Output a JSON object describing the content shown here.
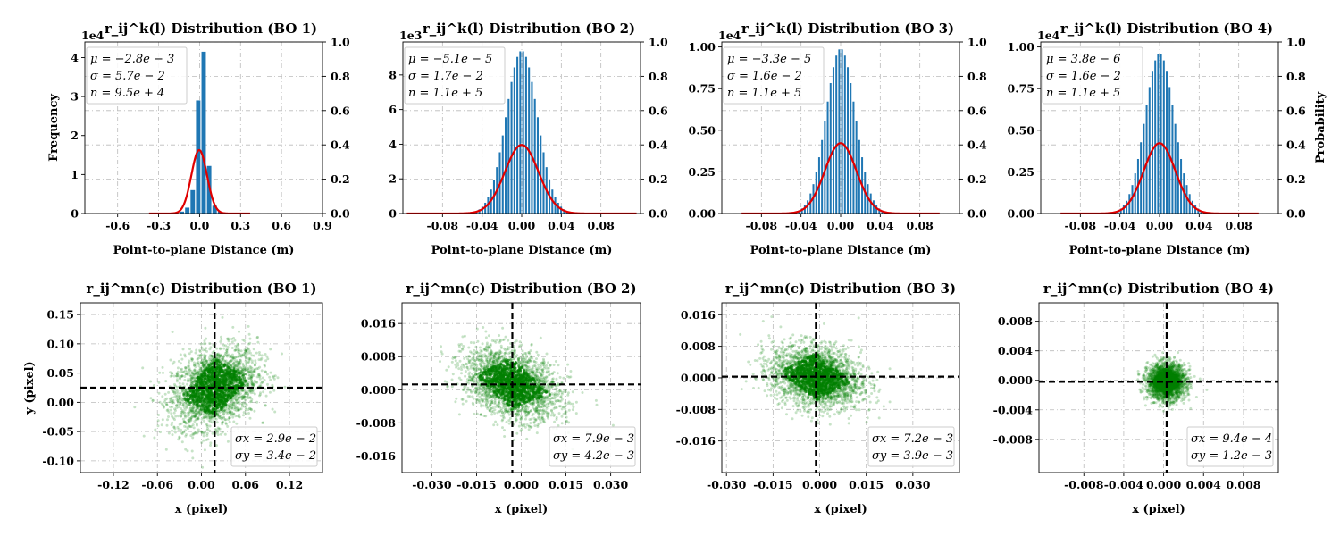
{
  "chart_data": [
    {
      "type": "bar",
      "title": "r_ij^k(l) Distribution (BO 1)",
      "xlabel": "Point-to-plane Distance (m)",
      "ylabel": "Frequency",
      "ylabel_right": "",
      "multiplier": "1e4",
      "xlim": [
        -0.84,
        0.9
      ],
      "ylim": [
        0,
        4.4
      ],
      "xticks": [
        -0.6,
        -0.3,
        0.0,
        0.3,
        0.6,
        0.9
      ],
      "xtick_labels": [
        "-0.6",
        "-0.3",
        "0.0",
        "0.3",
        "0.6",
        "0.9"
      ],
      "yticks": [
        0,
        1,
        2,
        3,
        4
      ],
      "ytick_labels": [
        "0",
        "1",
        "2",
        "3",
        "4"
      ],
      "y2lim": [
        0,
        1.0
      ],
      "y2ticks": [
        0.0,
        0.2,
        0.4,
        0.6,
        0.8,
        1.0
      ],
      "y2tick_labels": [
        "0.0",
        "0.2",
        "0.4",
        "0.6",
        "0.8",
        "1.0"
      ],
      "grid": true,
      "bar_color": "#1f77b4",
      "fit_color": "#e00000",
      "bins": [
        {
          "x": -0.13,
          "w": 0.04,
          "v": 0.05
        },
        {
          "x": -0.09,
          "w": 0.04,
          "v": 0.15
        },
        {
          "x": -0.05,
          "w": 0.04,
          "v": 0.6
        },
        {
          "x": -0.01,
          "w": 0.04,
          "v": 2.9
        },
        {
          "x": 0.03,
          "w": 0.04,
          "v": 4.15
        },
        {
          "x": 0.07,
          "w": 0.04,
          "v": 1.22
        },
        {
          "x": 0.11,
          "w": 0.04,
          "v": 0.2
        },
        {
          "x": 0.15,
          "w": 0.04,
          "v": 0.05
        }
      ],
      "fit": {
        "mu": -0.0028,
        "sigma": 0.057,
        "peak": 0.37,
        "xmin": -0.37,
        "xmax": 0.37
      },
      "stats": [
        "μ = −2.8e − 3",
        "σ = 5.7e − 2",
        "n = 9.5e + 4"
      ]
    },
    {
      "type": "bar",
      "title": "r_ij^k(l) Distribution (BO 2)",
      "xlabel": "Point-to-plane Distance (m)",
      "ylabel": "",
      "ylabel_right": "",
      "multiplier": "1e3",
      "xlim": [
        -0.12,
        0.12
      ],
      "ylim": [
        0,
        9.9
      ],
      "xticks": [
        -0.08,
        -0.04,
        0.0,
        0.04,
        0.08
      ],
      "xtick_labels": [
        "-0.08",
        "-0.04",
        "0.00",
        "0.04",
        "0.08"
      ],
      "yticks": [
        0,
        2,
        4,
        6,
        8
      ],
      "ytick_labels": [
        "0",
        "2",
        "4",
        "6",
        "8"
      ],
      "y2lim": [
        0,
        1.0
      ],
      "y2ticks": [
        0.0,
        0.2,
        0.4,
        0.6,
        0.8,
        1.0
      ],
      "y2tick_labels": [
        "0.0",
        "0.2",
        "0.4",
        "0.6",
        "0.8",
        "1.0"
      ],
      "grid": true,
      "bar_color": "#1f77b4",
      "fit_color": "#e00000",
      "gauss_bars": {
        "center": 0.0,
        "sigma": 0.0158,
        "peak": 9.4,
        "xmin": -0.056,
        "xmax": 0.056,
        "n": 38
      },
      "fit": {
        "mu": 0.0,
        "sigma": 0.017,
        "peak": 0.4,
        "xmin": -0.116,
        "xmax": 0.116
      },
      "stats": [
        "μ = −5.1e − 5",
        "σ = 1.7e − 2",
        "n = 1.1e + 5"
      ]
    },
    {
      "type": "bar",
      "title": "r_ij^k(l) Distribution (BO 3)",
      "xlabel": "Point-to-plane Distance (m)",
      "ylabel": "",
      "ylabel_right": "",
      "multiplier": "1e4",
      "xlim": [
        -0.12,
        0.12
      ],
      "ylim": [
        0,
        1.03
      ],
      "xticks": [
        -0.08,
        -0.04,
        0.0,
        0.04,
        0.08
      ],
      "xtick_labels": [
        "-0.08",
        "-0.04",
        "0.00",
        "0.04",
        "0.08"
      ],
      "yticks": [
        0,
        0.25,
        0.5,
        0.75,
        1.0
      ],
      "ytick_labels": [
        "0.00",
        "0.25",
        "0.50",
        "0.75",
        "1.00"
      ],
      "y2lim": [
        0,
        1.0
      ],
      "y2ticks": [
        0.0,
        0.2,
        0.4,
        0.6,
        0.8,
        1.0
      ],
      "y2tick_labels": [
        "0.0",
        "0.2",
        "0.4",
        "0.6",
        "0.8",
        "1.0"
      ],
      "grid": true,
      "bar_color": "#1f77b4",
      "fit_color": "#e00000",
      "gauss_bars": {
        "center": 0.0,
        "sigma": 0.0148,
        "peak": 0.99,
        "xmin": -0.055,
        "xmax": 0.055,
        "n": 38
      },
      "fit": {
        "mu": 0.0,
        "sigma": 0.016,
        "peak": 0.41,
        "xmin": -0.1,
        "xmax": 0.1
      },
      "stats": [
        "μ = −3.3e − 5",
        "σ = 1.6e − 2",
        "n = 1.1e + 5"
      ]
    },
    {
      "type": "bar",
      "title": "r_ij^k(l) Distribution (BO 4)",
      "xlabel": "Point-to-plane Distance (m)",
      "ylabel": "",
      "ylabel_right": "Probability",
      "multiplier": "1e4",
      "xlim": [
        -0.12,
        0.12
      ],
      "ylim": [
        0,
        1.03
      ],
      "xticks": [
        -0.08,
        -0.04,
        0.0,
        0.04,
        0.08
      ],
      "xtick_labels": [
        "-0.08",
        "-0.04",
        "0.00",
        "0.04",
        "0.08"
      ],
      "yticks": [
        0,
        0.25,
        0.5,
        0.75,
        1.0
      ],
      "ytick_labels": [
        "0.00",
        "0.25",
        "0.50",
        "0.75",
        "1.00"
      ],
      "y2lim": [
        0,
        1.0
      ],
      "y2ticks": [
        0.0,
        0.2,
        0.4,
        0.6,
        0.8,
        1.0
      ],
      "y2tick_labels": [
        "0.0",
        "0.2",
        "0.4",
        "0.6",
        "0.8",
        "1.0"
      ],
      "grid": true,
      "bar_color": "#1f77b4",
      "fit_color": "#e00000",
      "gauss_bars": {
        "center": 0.0,
        "sigma": 0.0148,
        "peak": 0.96,
        "xmin": -0.055,
        "xmax": 0.055,
        "n": 38
      },
      "fit": {
        "mu": 0.0,
        "sigma": 0.016,
        "peak": 0.41,
        "xmin": -0.1,
        "xmax": 0.1
      },
      "stats": [
        "μ = 3.8e − 6",
        "σ = 1.6e − 2",
        "n = 1.1e + 5"
      ]
    },
    {
      "type": "scatter",
      "title": "r_ij^mn(c) Distribution (BO 1)",
      "xlabel": "x (pixel)",
      "ylabel": "y (pixel)",
      "xlim": [
        -0.165,
        0.165
      ],
      "ylim": [
        -0.12,
        0.17
      ],
      "xticks": [
        -0.12,
        -0.06,
        0.0,
        0.06,
        0.12
      ],
      "xtick_labels": [
        "-0.12",
        "-0.06",
        "0.00",
        "0.06",
        "0.12"
      ],
      "yticks": [
        -0.1,
        -0.05,
        0.0,
        0.05,
        0.1,
        0.15
      ],
      "ytick_labels": [
        "-0.10",
        "-0.05",
        "0.00",
        "0.05",
        "0.10",
        "0.15"
      ],
      "grid": true,
      "point_color": "#008000",
      "vline": 0.018,
      "hline": 0.025,
      "cloud": {
        "cx": 0.018,
        "cy": 0.025,
        "sx": 0.029,
        "sy": 0.034,
        "rho": 0.3
      },
      "stats": [
        "σx = 2.9e − 2",
        "σy = 3.4e − 2"
      ]
    },
    {
      "type": "scatter",
      "title": "r_ij^mn(c) Distribution (BO 2)",
      "xlabel": "x (pixel)",
      "ylabel": "",
      "xlim": [
        -0.04,
        0.04
      ],
      "ylim": [
        -0.02,
        0.021
      ],
      "xticks": [
        -0.03,
        -0.015,
        0.0,
        0.015,
        0.03
      ],
      "xtick_labels": [
        "-0.030",
        "-0.015",
        "0.000",
        "0.015",
        "0.030"
      ],
      "yticks": [
        -0.016,
        -0.008,
        0.0,
        0.008,
        0.016
      ],
      "ytick_labels": [
        "-0.016",
        "-0.008",
        "0.000",
        "0.008",
        "0.016"
      ],
      "grid": true,
      "point_color": "#008000",
      "vline": -0.003,
      "hline": 0.0013,
      "cloud": {
        "cx": -0.003,
        "cy": 0.0013,
        "sx": 0.0079,
        "sy": 0.0042,
        "rho": -0.35
      },
      "stats": [
        "σx = 7.9e − 3",
        "σy = 4.2e − 3"
      ]
    },
    {
      "type": "scatter",
      "title": "r_ij^mn(c) Distribution (BO 3)",
      "xlabel": "x (pixel)",
      "ylabel": "",
      "xlim": [
        -0.0315,
        0.045
      ],
      "ylim": [
        -0.024,
        0.019
      ],
      "xticks": [
        -0.03,
        -0.015,
        0.0,
        0.015,
        0.03
      ],
      "xtick_labels": [
        "-0.030",
        "-0.015",
        "0.000",
        "0.015",
        "0.030"
      ],
      "yticks": [
        -0.016,
        -0.008,
        0.0,
        0.008,
        0.016
      ],
      "ytick_labels": [
        "-0.016",
        "-0.008",
        "0.000",
        "0.008",
        "0.016"
      ],
      "grid": true,
      "point_color": "#008000",
      "vline": -0.0012,
      "hline": 0.0003,
      "cloud": {
        "cx": -0.0012,
        "cy": 0.0003,
        "sx": 0.0072,
        "sy": 0.0039,
        "rho": -0.2
      },
      "stats": [
        "σx = 7.2e − 3",
        "σy = 3.9e − 3"
      ]
    },
    {
      "type": "scatter",
      "title": "r_ij^mn(c) Distribution (BO 4)",
      "xlabel": "x (pixel)",
      "ylabel": "",
      "xlim": [
        -0.0125,
        0.0115
      ],
      "ylim": [
        -0.0125,
        0.0105
      ],
      "xticks": [
        -0.008,
        -0.004,
        0.0,
        0.004,
        0.008
      ],
      "xtick_labels": [
        "-0.008",
        "-0.004",
        "0.000",
        "0.004",
        "0.008"
      ],
      "yticks": [
        -0.008,
        -0.004,
        0.0,
        0.004,
        0.008
      ],
      "ytick_labels": [
        "-0.008",
        "-0.004",
        "0.000",
        "0.004",
        "0.008"
      ],
      "grid": true,
      "point_color": "#008000",
      "vline": 0.0003,
      "hline": -0.0002,
      "cloud": {
        "cx": 0.0003,
        "cy": -0.0002,
        "sx": 0.00094,
        "sy": 0.0012,
        "rho": 0.0
      },
      "stats": [
        "σx = 9.4e − 4",
        "σy = 1.2e − 3"
      ]
    }
  ]
}
